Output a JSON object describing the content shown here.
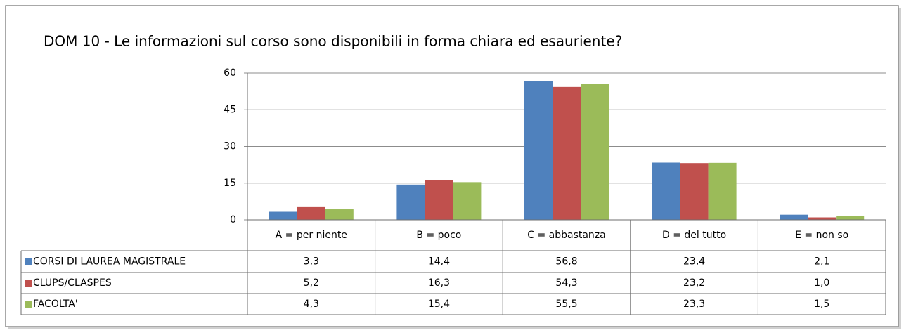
{
  "chart_data": {
    "type": "bar",
    "title": "DOM 10 - Le informazioni sul corso sono disponibili in forma chiara ed esauriente?",
    "categories": [
      "A = per niente",
      "B = poco",
      "C = abbastanza",
      "D = del tutto",
      "E = non so"
    ],
    "series": [
      {
        "name": "CORSI DI LAUREA MAGISTRALE",
        "color": "#4f81bd",
        "values": [
          3.3,
          14.4,
          56.8,
          23.4,
          2.1
        ],
        "value_labels": [
          "3,3",
          "14,4",
          "56,8",
          "23,4",
          "2,1"
        ]
      },
      {
        "name": "CLUPS/CLASPES",
        "color": "#c0504d",
        "values": [
          5.2,
          16.3,
          54.3,
          23.2,
          1.0
        ],
        "value_labels": [
          "5,2",
          "16,3",
          "54,3",
          "23,2",
          "1,0"
        ]
      },
      {
        "name": "FACOLTA'",
        "color": "#9bbb59",
        "values": [
          4.3,
          15.4,
          55.5,
          23.3,
          1.5
        ],
        "value_labels": [
          "4,3",
          "15,4",
          "55,5",
          "23,3",
          "1,5"
        ]
      }
    ],
    "ylim": [
      0,
      60
    ],
    "yticks": [
      0,
      15,
      30,
      45,
      60
    ],
    "grid": true
  }
}
